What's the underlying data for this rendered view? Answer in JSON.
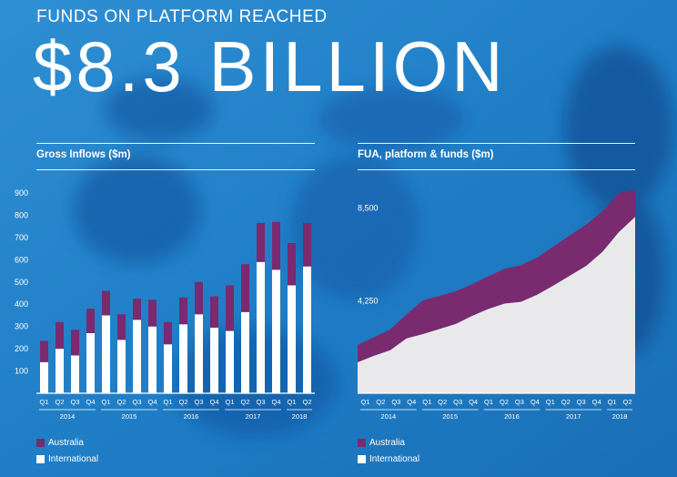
{
  "headline": "FUNDS ON PLATFORM REACHED",
  "big_number": "$8.3 BILLION",
  "colors": {
    "australia": "#7a2a6e",
    "international": "#ffffff",
    "area_international": "#e9e9ec",
    "background": "#1e7cc4"
  },
  "legend": {
    "australia": "Australia",
    "international": "International"
  },
  "chart_data": [
    {
      "type": "bar",
      "stacked": true,
      "title": "Gross Inflows ($m)",
      "categories": [
        "Q1",
        "Q2",
        "Q3",
        "Q4",
        "Q1",
        "Q2",
        "Q3",
        "Q4",
        "Q1",
        "Q2",
        "Q3",
        "Q4",
        "Q1",
        "Q2",
        "Q3",
        "Q4",
        "Q1",
        "Q2"
      ],
      "years": [
        {
          "label": "2014",
          "span": 4
        },
        {
          "label": "2015",
          "span": 4
        },
        {
          "label": "2016",
          "span": 4
        },
        {
          "label": "2017",
          "span": 4
        },
        {
          "label": "2018",
          "span": 2
        }
      ],
      "series": [
        {
          "name": "International",
          "values": [
            140,
            200,
            170,
            270,
            350,
            240,
            330,
            300,
            220,
            310,
            355,
            295,
            280,
            365,
            590,
            555,
            485,
            570
          ]
        },
        {
          "name": "Australia",
          "values": [
            95,
            120,
            115,
            110,
            110,
            115,
            95,
            120,
            100,
            120,
            145,
            140,
            205,
            215,
            175,
            215,
            190,
            195
          ]
        }
      ],
      "yticks": [
        100,
        200,
        300,
        400,
        500,
        600,
        700,
        800,
        900
      ],
      "ylim": [
        0,
        900
      ],
      "grid": false,
      "legend_position": "bottom-left"
    },
    {
      "type": "area",
      "stacked": true,
      "title": "FUA, platform & funds ($m)",
      "categories": [
        "Q1",
        "Q2",
        "Q3",
        "Q4",
        "Q1",
        "Q2",
        "Q3",
        "Q4",
        "Q1",
        "Q2",
        "Q3",
        "Q4",
        "Q1",
        "Q2",
        "Q3",
        "Q4",
        "Q1",
        "Q2"
      ],
      "years": [
        {
          "label": "2014",
          "span": 4
        },
        {
          "label": "2015",
          "span": 4
        },
        {
          "label": "2016",
          "span": 4
        },
        {
          "label": "2017",
          "span": 4
        },
        {
          "label": "2018",
          "span": 2
        }
      ],
      "series": [
        {
          "name": "International",
          "values": [
            1420,
            1720,
            1980,
            2520,
            2720,
            2950,
            3180,
            3550,
            3870,
            4120,
            4200,
            4530,
            4950,
            5400,
            5850,
            6500,
            7400,
            8100
          ]
        },
        {
          "name": "Australia",
          "values": [
            800,
            850,
            950,
            1100,
            1550,
            1520,
            1500,
            1450,
            1500,
            1600,
            1680,
            1700,
            1800,
            1850,
            1900,
            1850,
            1800,
            1250
          ]
        }
      ],
      "yticks": [
        4250,
        8500
      ],
      "ytick_labels": [
        "4,250",
        "8,500"
      ],
      "ylim": [
        0,
        9200
      ],
      "grid": false,
      "legend_position": "bottom-left"
    }
  ]
}
